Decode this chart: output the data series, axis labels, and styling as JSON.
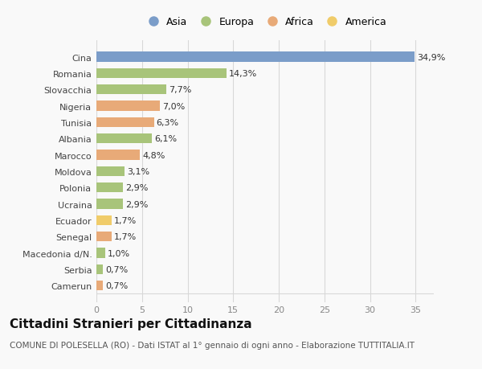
{
  "categories": [
    "Cina",
    "Romania",
    "Slovacchia",
    "Nigeria",
    "Tunisia",
    "Albania",
    "Marocco",
    "Moldova",
    "Polonia",
    "Ucraina",
    "Ecuador",
    "Senegal",
    "Macedonia d/N.",
    "Serbia",
    "Camerun"
  ],
  "values": [
    34.9,
    14.3,
    7.7,
    7.0,
    6.3,
    6.1,
    4.8,
    3.1,
    2.9,
    2.9,
    1.7,
    1.7,
    1.0,
    0.7,
    0.7
  ],
  "labels": [
    "34,9%",
    "14,3%",
    "7,7%",
    "7,0%",
    "6,3%",
    "6,1%",
    "4,8%",
    "3,1%",
    "2,9%",
    "2,9%",
    "1,7%",
    "1,7%",
    "1,0%",
    "0,7%",
    "0,7%"
  ],
  "continents": [
    "Asia",
    "Europa",
    "Europa",
    "Africa",
    "Africa",
    "Europa",
    "Africa",
    "Europa",
    "Europa",
    "Europa",
    "America",
    "Africa",
    "Europa",
    "Europa",
    "Africa"
  ],
  "colors": {
    "Asia": "#7b9dc9",
    "Europa": "#a8c47a",
    "Africa": "#e8aa78",
    "America": "#f0cc6a"
  },
  "legend_labels": [
    "Asia",
    "Europa",
    "Africa",
    "America"
  ],
  "legend_colors": [
    "#7b9dc9",
    "#a8c47a",
    "#e8aa78",
    "#f0cc6a"
  ],
  "title": "Cittadini Stranieri per Cittadinanza",
  "subtitle": "COMUNE DI POLESELLA (RO) - Dati ISTAT al 1° gennaio di ogni anno - Elaborazione TUTTITALIA.IT",
  "xlim": [
    0,
    37
  ],
  "xticks": [
    0,
    5,
    10,
    15,
    20,
    25,
    30,
    35
  ],
  "background_color": "#f9f9f9",
  "grid_color": "#d8d8d8",
  "bar_height": 0.6,
  "label_fontsize": 8,
  "tick_fontsize": 8,
  "title_fontsize": 11,
  "subtitle_fontsize": 7.5
}
